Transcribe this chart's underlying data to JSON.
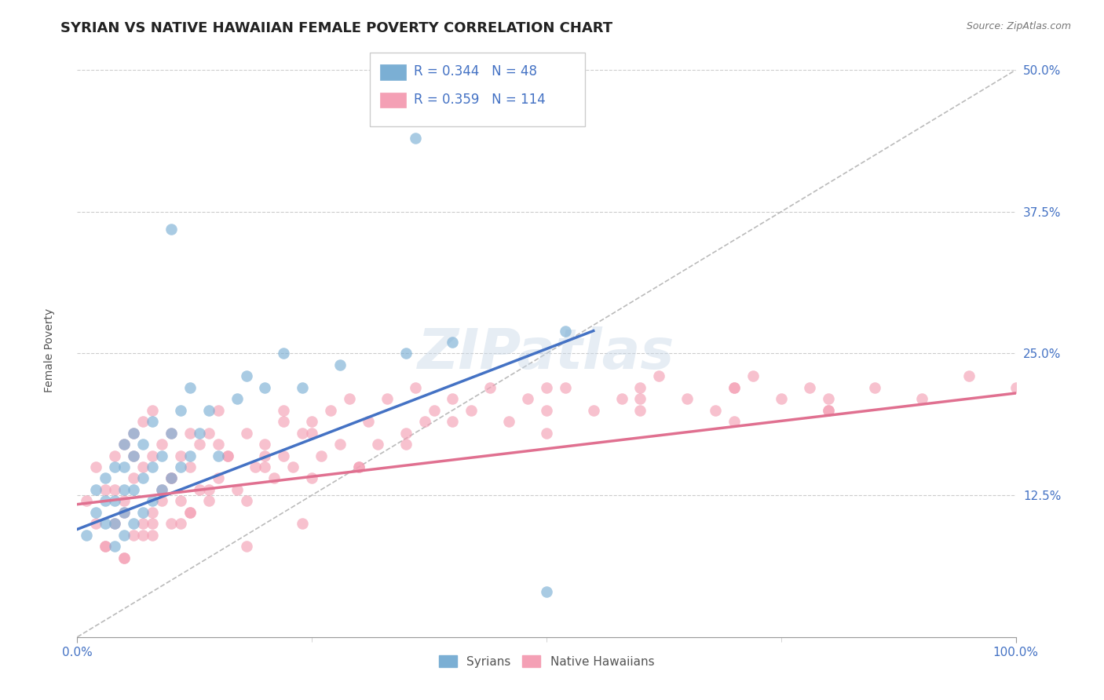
{
  "title": "SYRIAN VS NATIVE HAWAIIAN FEMALE POVERTY CORRELATION CHART",
  "source": "Source: ZipAtlas.com",
  "ylabel": "Female Poverty",
  "xlim": [
    0,
    1
  ],
  "ylim": [
    0,
    0.5
  ],
  "ytick_positions": [
    0.125,
    0.25,
    0.375,
    0.5
  ],
  "ytick_labels": [
    "12.5%",
    "25.0%",
    "37.5%",
    "50.0%"
  ],
  "grid_color": "#cccccc",
  "background_color": "#ffffff",
  "legend_r1": "R = 0.344",
  "legend_n1": "N = 48",
  "legend_r2": "R = 0.359",
  "legend_n2": "N = 114",
  "series1_color": "#7bafd4",
  "series2_color": "#f4a0b5",
  "series1_label": "Syrians",
  "series2_label": "Native Hawaiians",
  "title_fontsize": 13,
  "axis_label_fontsize": 10,
  "tick_fontsize": 11,
  "watermark": "ZIPatlas",
  "blue_line": {
    "x0": 0.0,
    "y0": 0.095,
    "x1": 0.55,
    "y1": 0.27
  },
  "pink_line": {
    "x0": 0.0,
    "y0": 0.117,
    "x1": 1.0,
    "y1": 0.215
  },
  "ref_line": {
    "x0": 0.0,
    "y0": 0.0,
    "x1": 1.0,
    "y1": 0.5
  },
  "syrians_x": [
    0.01,
    0.02,
    0.02,
    0.03,
    0.03,
    0.03,
    0.04,
    0.04,
    0.04,
    0.04,
    0.05,
    0.05,
    0.05,
    0.05,
    0.05,
    0.06,
    0.06,
    0.06,
    0.06,
    0.07,
    0.07,
    0.07,
    0.08,
    0.08,
    0.08,
    0.09,
    0.09,
    0.1,
    0.1,
    0.11,
    0.11,
    0.12,
    0.12,
    0.13,
    0.14,
    0.15,
    0.17,
    0.18,
    0.2,
    0.22,
    0.24,
    0.28,
    0.35,
    0.4,
    0.52,
    0.1,
    0.36,
    0.5
  ],
  "syrians_y": [
    0.09,
    0.11,
    0.13,
    0.1,
    0.12,
    0.14,
    0.08,
    0.1,
    0.12,
    0.15,
    0.09,
    0.11,
    0.13,
    0.15,
    0.17,
    0.1,
    0.13,
    0.16,
    0.18,
    0.11,
    0.14,
    0.17,
    0.12,
    0.15,
    0.19,
    0.13,
    0.16,
    0.14,
    0.18,
    0.15,
    0.2,
    0.16,
    0.22,
    0.18,
    0.2,
    0.16,
    0.21,
    0.23,
    0.22,
    0.25,
    0.22,
    0.24,
    0.25,
    0.26,
    0.27,
    0.36,
    0.44,
    0.04
  ],
  "native_x": [
    0.01,
    0.02,
    0.02,
    0.03,
    0.03,
    0.04,
    0.04,
    0.05,
    0.05,
    0.05,
    0.06,
    0.06,
    0.06,
    0.07,
    0.07,
    0.07,
    0.08,
    0.08,
    0.08,
    0.09,
    0.09,
    0.1,
    0.1,
    0.1,
    0.11,
    0.11,
    0.12,
    0.12,
    0.13,
    0.13,
    0.14,
    0.14,
    0.15,
    0.15,
    0.16,
    0.17,
    0.18,
    0.19,
    0.2,
    0.21,
    0.22,
    0.22,
    0.23,
    0.24,
    0.25,
    0.25,
    0.26,
    0.27,
    0.28,
    0.29,
    0.3,
    0.31,
    0.32,
    0.33,
    0.35,
    0.36,
    0.37,
    0.38,
    0.4,
    0.42,
    0.44,
    0.46,
    0.48,
    0.5,
    0.52,
    0.55,
    0.58,
    0.6,
    0.62,
    0.65,
    0.68,
    0.7,
    0.72,
    0.75,
    0.78,
    0.8,
    0.85,
    0.9,
    0.95,
    1.0,
    0.04,
    0.06,
    0.08,
    0.1,
    0.12,
    0.14,
    0.16,
    0.18,
    0.2,
    0.22,
    0.03,
    0.05,
    0.07,
    0.09,
    0.11,
    0.15,
    0.2,
    0.25,
    0.3,
    0.35,
    0.4,
    0.5,
    0.6,
    0.7,
    0.8,
    0.05,
    0.08,
    0.12,
    0.18,
    0.24,
    0.5,
    0.6,
    0.7,
    0.8
  ],
  "native_y": [
    0.12,
    0.1,
    0.15,
    0.08,
    0.13,
    0.1,
    0.16,
    0.07,
    0.12,
    0.17,
    0.09,
    0.14,
    0.18,
    0.1,
    0.15,
    0.19,
    0.11,
    0.16,
    0.2,
    0.12,
    0.17,
    0.1,
    0.14,
    0.18,
    0.12,
    0.16,
    0.11,
    0.15,
    0.13,
    0.17,
    0.12,
    0.18,
    0.14,
    0.2,
    0.16,
    0.13,
    0.18,
    0.15,
    0.17,
    0.14,
    0.16,
    0.2,
    0.15,
    0.18,
    0.14,
    0.19,
    0.16,
    0.2,
    0.17,
    0.21,
    0.15,
    0.19,
    0.17,
    0.21,
    0.18,
    0.22,
    0.19,
    0.2,
    0.21,
    0.2,
    0.22,
    0.19,
    0.21,
    0.2,
    0.22,
    0.2,
    0.21,
    0.22,
    0.23,
    0.21,
    0.2,
    0.22,
    0.23,
    0.21,
    0.22,
    0.2,
    0.22,
    0.21,
    0.23,
    0.22,
    0.13,
    0.16,
    0.1,
    0.14,
    0.18,
    0.13,
    0.16,
    0.12,
    0.15,
    0.19,
    0.08,
    0.11,
    0.09,
    0.13,
    0.1,
    0.17,
    0.16,
    0.18,
    0.15,
    0.17,
    0.19,
    0.18,
    0.2,
    0.19,
    0.21,
    0.07,
    0.09,
    0.11,
    0.08,
    0.1,
    0.22,
    0.21,
    0.22,
    0.2
  ]
}
